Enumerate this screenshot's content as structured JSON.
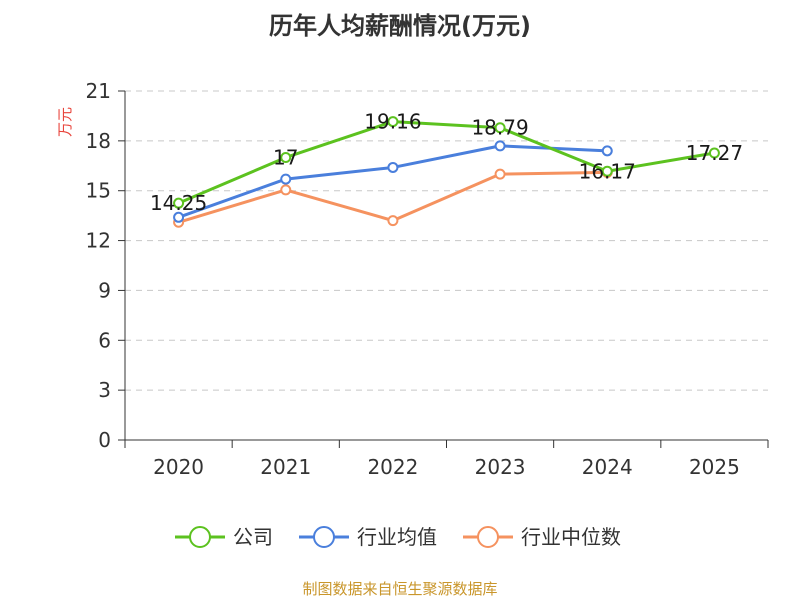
{
  "title": "历年人均薪酬情况(万元)",
  "source": "制图数据来自恒生聚源数据库",
  "chart_data": {
    "type": "line",
    "title": "历年人均薪酬情况(万元)",
    "ylabel": "万元",
    "xlabel": "",
    "categories": [
      "2020",
      "2021",
      "2022",
      "2023",
      "2024",
      "2025"
    ],
    "ylim": [
      0,
      21
    ],
    "yticks": [
      0,
      3,
      6,
      9,
      12,
      15,
      18,
      21
    ],
    "grid": true,
    "legend_position": "bottom",
    "series": [
      {
        "name": "公司",
        "color": "#5cc21f",
        "values": [
          14.25,
          17,
          19.16,
          18.79,
          16.17,
          17.27
        ],
        "labels": [
          "14.25",
          "17",
          "19.16",
          "18.79",
          "16.17",
          "17.27"
        ]
      },
      {
        "name": "行业均值",
        "color": "#4a7fdc",
        "values": [
          13.4,
          15.7,
          16.4,
          17.7,
          17.4,
          null
        ],
        "labels": null
      },
      {
        "name": "行业中位数",
        "color": "#f5925f",
        "values": [
          13.1,
          15.05,
          13.2,
          16.0,
          16.1,
          null
        ],
        "labels": null
      }
    ]
  }
}
